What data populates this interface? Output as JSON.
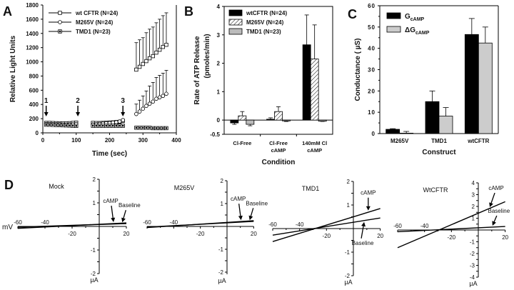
{
  "chart_data": [
    {
      "panel": "A",
      "type": "scatter",
      "xlabel": "Time (sec)",
      "ylabel": "Relative Light Units",
      "xlim": [
        0,
        400
      ],
      "ylim": [
        0,
        1800
      ],
      "xticks": [
        0,
        100,
        200,
        300,
        400
      ],
      "yticks": [
        0,
        200,
        400,
        600,
        800,
        1000,
        1200,
        1400,
        1600,
        1800
      ],
      "legend_position": "top-left",
      "annotations": [
        {
          "label": "1",
          "x": 10
        },
        {
          "label": "2",
          "x": 105
        },
        {
          "label": "3",
          "x": 240
        }
      ],
      "series": [
        {
          "name": "wt CFTR (N=24)",
          "marker": "square-open",
          "x": [
            10,
            20,
            30,
            40,
            50,
            60,
            70,
            80,
            90,
            100,
            150,
            160,
            170,
            180,
            190,
            200,
            210,
            220,
            230,
            240,
            280,
            290,
            300,
            310,
            320,
            330,
            340,
            350,
            360,
            370
          ],
          "y": [
            140,
            140,
            138,
            136,
            135,
            134,
            134,
            136,
            140,
            145,
            140,
            138,
            138,
            140,
            142,
            145,
            148,
            152,
            156,
            170,
            890,
            930,
            970,
            1010,
            1050,
            1080,
            1130,
            1170,
            1210,
            1240
          ],
          "err": [
            0,
            0,
            0,
            0,
            0,
            0,
            0,
            0,
            0,
            0,
            0,
            0,
            0,
            0,
            0,
            0,
            0,
            0,
            0,
            0,
            380,
            380,
            370,
            400,
            410,
            410,
            420,
            430,
            440,
            450
          ]
        },
        {
          "name": "M265V (N=24)",
          "marker": "circle-open",
          "x": [
            10,
            20,
            30,
            40,
            50,
            60,
            70,
            80,
            90,
            100,
            150,
            160,
            170,
            180,
            190,
            200,
            210,
            220,
            230,
            240,
            280,
            290,
            300,
            310,
            320,
            330,
            340,
            350,
            360,
            370
          ],
          "y": [
            125,
            124,
            122,
            120,
            120,
            118,
            118,
            120,
            122,
            125,
            120,
            122,
            126,
            130,
            134,
            138,
            144,
            150,
            160,
            180,
            265,
            300,
            340,
            380,
            410,
            440,
            480,
            500,
            520,
            550
          ],
          "err": [
            0,
            0,
            0,
            0,
            0,
            0,
            0,
            0,
            0,
            0,
            0,
            0,
            0,
            0,
            0,
            0,
            0,
            0,
            0,
            0,
            140,
            160,
            180,
            210,
            250,
            270,
            300,
            310,
            320,
            330
          ]
        },
        {
          "name": "TMD1 (N=23)",
          "marker": "square-filled",
          "x": [
            10,
            20,
            30,
            40,
            50,
            60,
            70,
            80,
            90,
            100,
            150,
            160,
            170,
            180,
            190,
            200,
            210,
            220,
            230,
            240,
            280,
            290,
            300,
            310,
            320,
            330,
            340,
            350,
            360,
            370
          ],
          "y": [
            115,
            114,
            112,
            110,
            108,
            106,
            104,
            102,
            100,
            98,
            100,
            100,
            100,
            100,
            100,
            100,
            100,
            100,
            100,
            100,
            72,
            72,
            72,
            72,
            72,
            66,
            66,
            66,
            66,
            66
          ],
          "err": [
            0,
            0,
            0,
            0,
            0,
            0,
            0,
            0,
            0,
            0,
            0,
            0,
            0,
            0,
            0,
            0,
            0,
            0,
            0,
            0,
            0,
            0,
            0,
            0,
            0,
            0,
            0,
            0,
            0,
            0
          ]
        }
      ]
    },
    {
      "panel": "B",
      "type": "bar",
      "xlabel": "Condition",
      "ylabel": "Rate of ATP Release (pmoles/min)",
      "ylim": [
        -0.5,
        4
      ],
      "yticks": [
        -0.5,
        0,
        1,
        2,
        3,
        4
      ],
      "legend_position": "top-left",
      "categories": [
        "Cl-Free",
        "Cl-Free\ncAMP",
        "140mM Cl\ncAMP"
      ],
      "category_lines": [
        [
          "Cl-Free"
        ],
        [
          "Cl-Free",
          "cAMP"
        ],
        [
          "140mM Cl",
          "cAMP"
        ]
      ],
      "series": [
        {
          "name": "wtCFTR (N=24)",
          "fill": "black",
          "values": [
            -0.1,
            0.03,
            2.65
          ],
          "err": [
            0.05,
            0.05,
            1.05
          ]
        },
        {
          "name": "M265V (N=24)",
          "fill": "hatched",
          "values": [
            0.15,
            0.3,
            2.15
          ],
          "err": [
            0.15,
            0.17,
            1.2
          ]
        },
        {
          "name": "TMD1 (N=23)",
          "fill": "gray",
          "values": [
            -0.15,
            -0.03,
            -0.04
          ],
          "err": [
            0.05,
            0.02,
            0.01
          ]
        }
      ]
    },
    {
      "panel": "C",
      "type": "bar",
      "xlabel": "Construct",
      "ylabel": "Conductance ( µS)",
      "ylim": [
        0,
        60
      ],
      "yticks": [
        0,
        10,
        20,
        30,
        40,
        50,
        60
      ],
      "legend_position": "top-left",
      "categories": [
        "M265V",
        "TMD1",
        "wtCFTR"
      ],
      "series": [
        {
          "name": "GcAMP",
          "name_main": "G",
          "name_sub": "cAMP",
          "fill": "black",
          "values": [
            2,
            15,
            46.5
          ],
          "err": [
            0.3,
            5,
            7.5
          ]
        },
        {
          "name": "ΔGcAMP",
          "name_main": "ΔG",
          "name_sub": "cAMP",
          "fill": "lightgray",
          "values": [
            0.2,
            8.2,
            42.5
          ],
          "err": [
            0.8,
            4,
            7.5
          ]
        }
      ]
    },
    {
      "panel": "D",
      "type": "line",
      "xlabel": "mV",
      "ylabel": "µA",
      "subplots": [
        {
          "title": "Mock",
          "xlim": [
            -60,
            20
          ],
          "ylim": [
            -2,
            2
          ],
          "xticks": [
            -60,
            -40,
            -20,
            20
          ],
          "yticks": [
            -2,
            -1,
            1,
            2
          ],
          "series": [
            {
              "name": "cAMP",
              "x": [
                -60,
                20
              ],
              "y": [
                -0.08,
                0.15
              ]
            },
            {
              "name": "Baseline",
              "x": [
                -60,
                20
              ],
              "y": [
                -0.03,
                0.12
              ]
            }
          ],
          "labels": {
            "camp_at_x": 10,
            "baseline_at_x": 17
          }
        },
        {
          "title": "M265V",
          "xlim": [
            -60,
            20
          ],
          "ylim": [
            -2,
            2
          ],
          "xticks": [
            -60,
            -40,
            -20,
            20
          ],
          "yticks": [
            -2,
            -1,
            1,
            2
          ],
          "series": [
            {
              "name": "cAMP",
              "x": [
                -60,
                20
              ],
              "y": [
                -0.05,
                0.25
              ]
            },
            {
              "name": "Baseline",
              "x": [
                -60,
                20
              ],
              "y": [
                -0.03,
                0.22
              ]
            }
          ],
          "labels": {
            "camp_at_x": 10,
            "baseline_at_x": 17
          }
        },
        {
          "title": "TMD1",
          "xlim": [
            -60,
            20
          ],
          "ylim": [
            -2,
            2
          ],
          "xticks": [
            -60,
            -40,
            -20,
            20
          ],
          "yticks": [
            -2,
            -1,
            1,
            2
          ],
          "series": [
            {
              "name": "cAMP",
              "x": [
                -60,
                20
              ],
              "y": [
                -0.55,
                0.85
              ]
            },
            {
              "name": "Baseline",
              "x": [
                -60,
                20
              ],
              "y": [
                -0.28,
                0.45
              ]
            }
          ],
          "labels": {
            "camp_at_x": 10,
            "baseline_at_x": 8
          }
        },
        {
          "title": "WtCFTR",
          "xlim": [
            -60,
            20
          ],
          "ylim": [
            -4,
            4
          ],
          "xticks": [
            -60,
            -40,
            -20,
            20
          ],
          "yticks": [
            -4,
            -3,
            -2,
            -1,
            1,
            2,
            3,
            4
          ],
          "series": [
            {
              "name": "cAMP",
              "x": [
                -60,
                20
              ],
              "y": [
                -1.5,
                2.4
              ]
            },
            {
              "name": "Baseline",
              "x": [
                -60,
                20
              ],
              "y": [
                -0.15,
                0.3
              ]
            }
          ],
          "labels": {
            "camp_at_x": 8,
            "baseline_at_x": 10
          }
        }
      ]
    }
  ]
}
